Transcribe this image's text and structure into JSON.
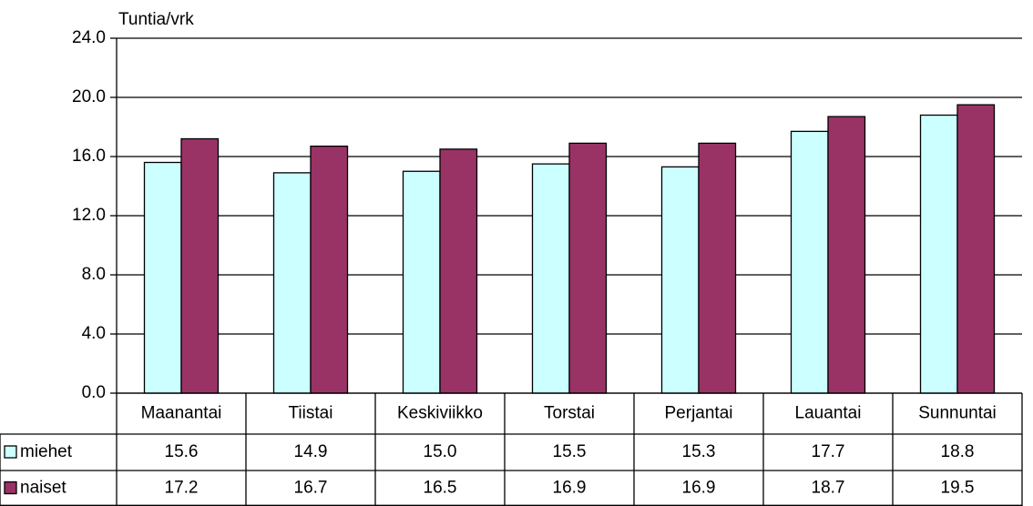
{
  "chart_data": {
    "type": "bar",
    "y_axis_label": "Tuntia/vrk",
    "categories": [
      "Maanantai",
      "Tiistai",
      "Keskiviikko",
      "Torstai",
      "Perjantai",
      "Lauantai",
      "Sunnuntai"
    ],
    "series": [
      {
        "name": "miehet",
        "color": "#ccffff",
        "values": [
          15.6,
          14.9,
          15.0,
          15.5,
          15.3,
          17.7,
          18.8
        ],
        "value_labels": [
          "15.6",
          "14.9",
          "15.0",
          "15.5",
          "15.3",
          "17.7",
          "18.8"
        ]
      },
      {
        "name": "naiset",
        "color": "#993366",
        "values": [
          17.2,
          16.7,
          16.5,
          16.9,
          16.9,
          18.7,
          19.5
        ],
        "value_labels": [
          "17.2",
          "16.7",
          "16.5",
          "16.9",
          "16.9",
          "18.7",
          "19.5"
        ]
      }
    ],
    "ylim": [
      0,
      24
    ],
    "yticks": [
      {
        "value": 0,
        "label": "0.0"
      },
      {
        "value": 4,
        "label": "4.0"
      },
      {
        "value": 8,
        "label": "8.0"
      },
      {
        "value": 12,
        "label": "12.0"
      },
      {
        "value": 16,
        "label": "16.0"
      },
      {
        "value": 20,
        "label": "20.0"
      },
      {
        "value": 24,
        "label": "24.0"
      }
    ],
    "grid": true,
    "data_table": true
  }
}
